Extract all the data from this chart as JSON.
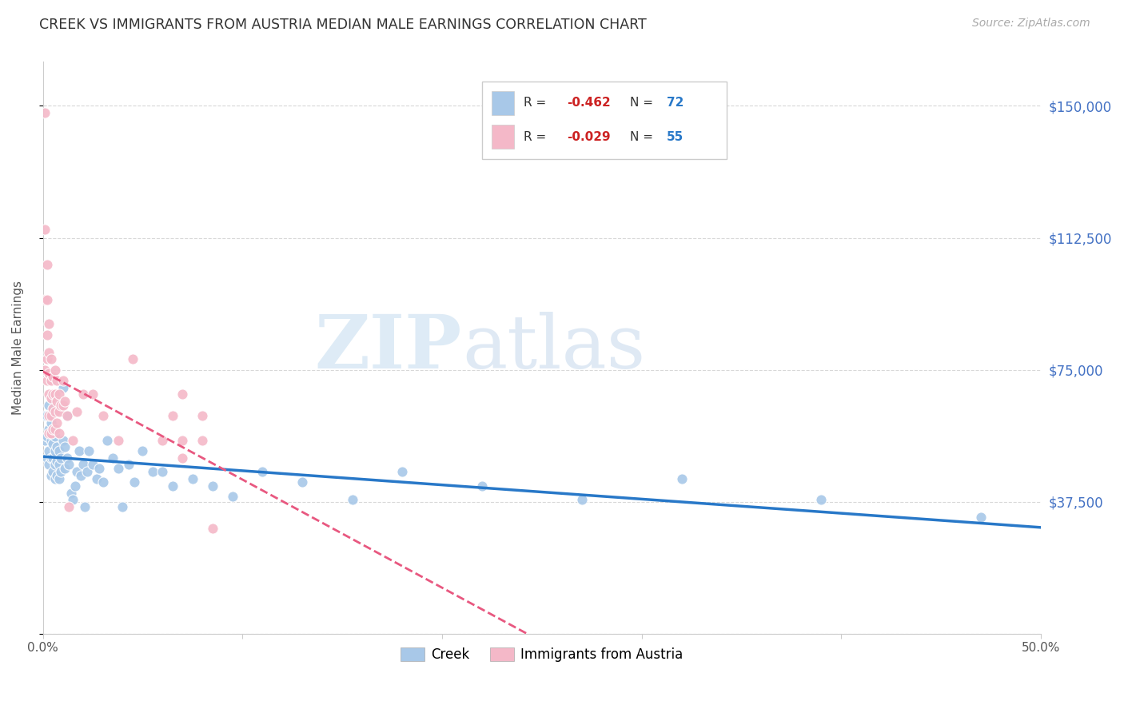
{
  "title": "CREEK VS IMMIGRANTS FROM AUSTRIA MEDIAN MALE EARNINGS CORRELATION CHART",
  "source": "Source: ZipAtlas.com",
  "ylabel": "Median Male Earnings",
  "yticks": [
    0,
    37500,
    75000,
    112500,
    150000
  ],
  "ytick_labels": [
    "",
    "$37,500",
    "$75,000",
    "$112,500",
    "$150,000"
  ],
  "xlim": [
    0.0,
    0.5
  ],
  "ylim": [
    0,
    162500
  ],
  "creek_R": -0.462,
  "creek_N": 72,
  "austria_R": -0.029,
  "austria_N": 55,
  "creek_color": "#a8c8e8",
  "austria_color": "#f4b8c8",
  "creek_line_color": "#2878c8",
  "austria_line_color": "#e85880",
  "title_color": "#333333",
  "right_tick_color": "#4472c4",
  "watermark_zip": "ZIP",
  "watermark_atlas": "atlas",
  "creek_points_x": [
    0.001,
    0.001,
    0.002,
    0.002,
    0.002,
    0.003,
    0.003,
    0.003,
    0.003,
    0.004,
    0.004,
    0.004,
    0.004,
    0.005,
    0.005,
    0.005,
    0.005,
    0.006,
    0.006,
    0.006,
    0.006,
    0.007,
    0.007,
    0.007,
    0.008,
    0.008,
    0.008,
    0.009,
    0.009,
    0.01,
    0.01,
    0.011,
    0.011,
    0.012,
    0.012,
    0.013,
    0.014,
    0.015,
    0.016,
    0.017,
    0.018,
    0.019,
    0.02,
    0.021,
    0.022,
    0.023,
    0.025,
    0.027,
    0.028,
    0.03,
    0.032,
    0.035,
    0.038,
    0.04,
    0.043,
    0.046,
    0.05,
    0.055,
    0.06,
    0.065,
    0.075,
    0.085,
    0.095,
    0.11,
    0.13,
    0.155,
    0.18,
    0.22,
    0.27,
    0.32,
    0.39,
    0.47
  ],
  "creek_points_y": [
    55000,
    62000,
    50000,
    56000,
    62000,
    48000,
    52000,
    58000,
    65000,
    45000,
    50000,
    55000,
    60000,
    46000,
    50000,
    54000,
    58000,
    44000,
    48000,
    52000,
    56000,
    45000,
    49000,
    53000,
    44000,
    48000,
    52000,
    46000,
    50000,
    70000,
    55000,
    47000,
    53000,
    62000,
    50000,
    48000,
    40000,
    38000,
    42000,
    46000,
    52000,
    45000,
    48000,
    36000,
    46000,
    52000,
    48000,
    44000,
    47000,
    43000,
    55000,
    50000,
    47000,
    36000,
    48000,
    43000,
    52000,
    46000,
    46000,
    42000,
    44000,
    42000,
    39000,
    46000,
    43000,
    38000,
    46000,
    42000,
    38000,
    44000,
    38000,
    33000
  ],
  "austria_points_x": [
    0.001,
    0.001,
    0.001,
    0.001,
    0.002,
    0.002,
    0.002,
    0.002,
    0.002,
    0.003,
    0.003,
    0.003,
    0.003,
    0.003,
    0.003,
    0.004,
    0.004,
    0.004,
    0.004,
    0.004,
    0.005,
    0.005,
    0.005,
    0.005,
    0.006,
    0.006,
    0.006,
    0.006,
    0.007,
    0.007,
    0.007,
    0.008,
    0.008,
    0.008,
    0.009,
    0.01,
    0.01,
    0.011,
    0.012,
    0.013,
    0.015,
    0.017,
    0.02,
    0.025,
    0.03,
    0.038,
    0.045,
    0.06,
    0.065,
    0.07,
    0.07,
    0.07,
    0.08,
    0.08,
    0.085
  ],
  "austria_points_y": [
    148000,
    115000,
    95000,
    75000,
    105000,
    95000,
    85000,
    78000,
    72000,
    88000,
    80000,
    74000,
    68000,
    62000,
    57000,
    78000,
    72000,
    67000,
    62000,
    57000,
    73000,
    68000,
    64000,
    58000,
    75000,
    68000,
    63000,
    58000,
    72000,
    66000,
    60000,
    68000,
    63000,
    57000,
    65000,
    72000,
    65000,
    66000,
    62000,
    36000,
    55000,
    63000,
    68000,
    68000,
    62000,
    55000,
    78000,
    55000,
    62000,
    50000,
    55000,
    68000,
    62000,
    55000,
    30000
  ]
}
